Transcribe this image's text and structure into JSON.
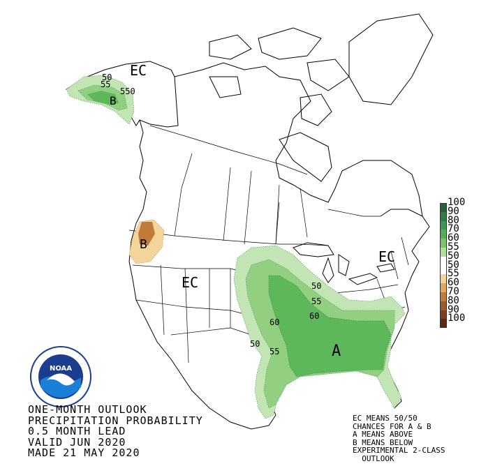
{
  "title_lines": [
    "ONE-MONTH OUTLOOK",
    "PRECIPITATION PROBABILITY",
    "0.5 MONTH LEAD",
    "VALID JUN 2020",
    "MADE 21 MAY 2020"
  ],
  "legend_notes": [
    "EC MEANS 50/50",
    "CHANCES FOR A & B",
    "A MEANS ABOVE",
    "B MEANS BELOW",
    "EXPERIMENTAL 2-CLASS",
    "  OUTLOOK"
  ],
  "colorbar": {
    "labels": [
      "100",
      "90",
      "80",
      "70",
      "60",
      "55",
      "50",
      "50",
      "55",
      "60",
      "70",
      "80",
      "90",
      "100"
    ],
    "colors": [
      "#2d5e3c",
      "#2f7a45",
      "#3a9650",
      "#52ae5a",
      "#7cc36b",
      "#b3dca0",
      "#ffffff",
      "#ffffff",
      "#f3d59c",
      "#e0a85a",
      "#c07a3a",
      "#9a5a2a",
      "#7a3f20",
      "#5a2a14"
    ]
  },
  "map_labels": {
    "ec_alaska": "EC",
    "ec_west": "EC",
    "ec_northeast": "EC",
    "above_mark": "A",
    "below_ak": "B",
    "below_pnw": "B",
    "contour_50_ak": "50",
    "contour_55_ak": "55",
    "contour_550_ak": "550",
    "contour_50_gl": "50",
    "contour_55_gl": "55",
    "contour_60_gl": "60",
    "contour_60_plains": "60",
    "contour_50_tx": "50",
    "contour_55_tx": "55"
  },
  "logo": {
    "name": "NOAA",
    "ring_text": "NATIONAL OCEANIC AND ATMOSPHERIC ADMINISTRATION"
  }
}
